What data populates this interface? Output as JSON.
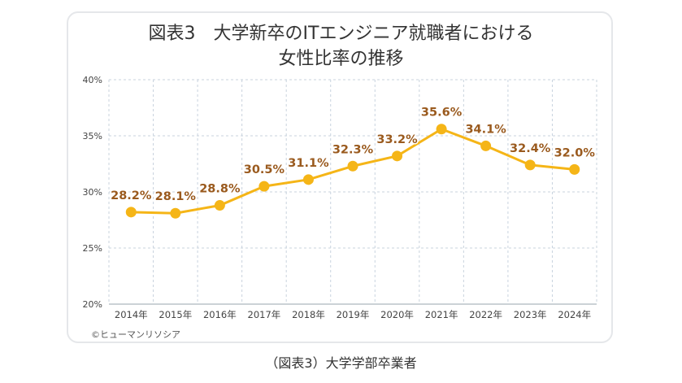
{
  "title_lines": [
    "図表3　大学新卒のITエンジニア就職者における",
    "女性比率の推移"
  ],
  "copyright": "©ヒューマンリソシア",
  "caption": "（図表3）大学学部卒業者",
  "colors": {
    "line": "#F5B517",
    "label": "#9A5A1E",
    "grid": "#c9d3de",
    "axis_text": "#444444"
  },
  "chart_data": {
    "type": "line",
    "title": "図表3　大学新卒のITエンジニア就職者における女性比率の推移",
    "xlabel": "",
    "ylabel": "",
    "categories": [
      "2014年",
      "2015年",
      "2016年",
      "2017年",
      "2018年",
      "2019年",
      "2020年",
      "2021年",
      "2022年",
      "2023年",
      "2024年"
    ],
    "values": [
      28.2,
      28.1,
      28.8,
      30.5,
      31.1,
      32.3,
      33.2,
      35.6,
      34.1,
      32.4,
      32.0
    ],
    "data_labels": [
      "28.2%",
      "28.1%",
      "28.8%",
      "30.5%",
      "31.1%",
      "32.3%",
      "33.2%",
      "35.6%",
      "34.1%",
      "32.4%",
      "32.0%"
    ],
    "ylim": [
      20,
      40
    ],
    "yticks": [
      20,
      25,
      30,
      35,
      40
    ],
    "ytick_labels": [
      "20%",
      "25%",
      "30%",
      "35%",
      "40%"
    ],
    "grid": true,
    "legend": "none"
  }
}
